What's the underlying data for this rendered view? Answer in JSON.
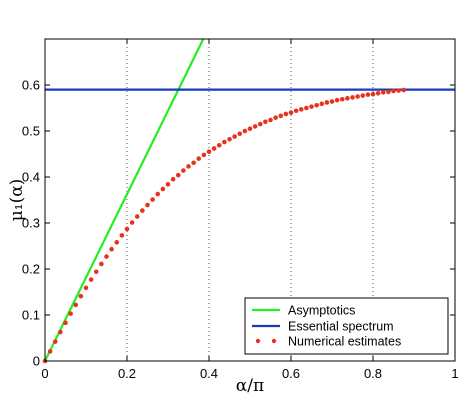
{
  "chart_data": {
    "type": "line",
    "xlabel": "α/π",
    "ylabel": "μ₁(α)",
    "xlim": [
      0,
      1
    ],
    "ylim": [
      0,
      0.7
    ],
    "xticks": [
      0,
      0.2,
      0.4,
      0.6,
      0.8,
      1
    ],
    "xtick_labels": [
      "0",
      "0.2",
      "0.4",
      "0.6",
      "0.8",
      "1"
    ],
    "yticks": [
      0,
      0.1,
      0.2,
      0.3,
      0.4,
      0.5,
      0.6
    ],
    "ytick_labels": [
      "0",
      "0.1",
      "0.2",
      "0.3",
      "0.4",
      "0.5",
      "0.6"
    ],
    "vertical_gridlines_at": [
      0.2,
      0.4,
      0.6,
      0.8
    ],
    "legend_position": "bottom-right",
    "series": [
      {
        "name": "Asymptotics",
        "style": "line",
        "color": "#22ee22",
        "x": [
          0,
          0.386
        ],
        "y": [
          0,
          0.7
        ]
      },
      {
        "name": "Essential spectrum",
        "style": "line",
        "color": "#1a3ab8",
        "x": [
          0,
          1
        ],
        "y": [
          0.59,
          0.59
        ]
      },
      {
        "name": "Numerical estimates",
        "style": "dots",
        "color": "#e8321e",
        "x": [
          0.0,
          0.0125,
          0.025,
          0.0375,
          0.05,
          0.0625,
          0.075,
          0.0875,
          0.1,
          0.1125,
          0.125,
          0.1375,
          0.15,
          0.1625,
          0.175,
          0.1875,
          0.2,
          0.2125,
          0.225,
          0.2375,
          0.25,
          0.2625,
          0.275,
          0.2875,
          0.3,
          0.3125,
          0.325,
          0.3375,
          0.35,
          0.3625,
          0.375,
          0.3875,
          0.4,
          0.4125,
          0.425,
          0.4375,
          0.45,
          0.4625,
          0.475,
          0.4875,
          0.5,
          0.5125,
          0.525,
          0.5375,
          0.55,
          0.5625,
          0.575,
          0.5875,
          0.6,
          0.6125,
          0.625,
          0.6375,
          0.65,
          0.6625,
          0.675,
          0.6875,
          0.7,
          0.7125,
          0.725,
          0.7375,
          0.75,
          0.7625,
          0.775,
          0.7875,
          0.8,
          0.8125,
          0.825,
          0.8375,
          0.85,
          0.8625,
          0.875
        ],
        "y": [
          0.0,
          0.021,
          0.042,
          0.063,
          0.083,
          0.103,
          0.122,
          0.141,
          0.159,
          0.177,
          0.194,
          0.211,
          0.227,
          0.243,
          0.258,
          0.273,
          0.287,
          0.301,
          0.314,
          0.327,
          0.339,
          0.351,
          0.363,
          0.374,
          0.384,
          0.395,
          0.404,
          0.414,
          0.423,
          0.431,
          0.44,
          0.448,
          0.455,
          0.462,
          0.469,
          0.476,
          0.482,
          0.488,
          0.494,
          0.5,
          0.505,
          0.51,
          0.515,
          0.52,
          0.524,
          0.529,
          0.533,
          0.537,
          0.54,
          0.544,
          0.547,
          0.55,
          0.553,
          0.556,
          0.559,
          0.562,
          0.564,
          0.567,
          0.569,
          0.571,
          0.573,
          0.575,
          0.577,
          0.579,
          0.58,
          0.582,
          0.584,
          0.585,
          0.587,
          0.588,
          0.589
        ]
      }
    ]
  }
}
